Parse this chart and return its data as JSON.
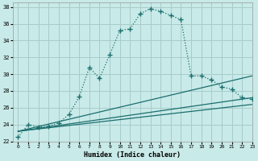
{
  "xlabel": "Humidex (Indice chaleur)",
  "bg_color": "#c8eae8",
  "grid_color": "#a8ccca",
  "line_color": "#1a6e6e",
  "xlim": [
    -0.5,
    23
  ],
  "ylim": [
    22,
    38.5
  ],
  "yticks": [
    22,
    24,
    26,
    28,
    30,
    32,
    34,
    36,
    38
  ],
  "xticks": [
    0,
    1,
    2,
    3,
    4,
    5,
    6,
    7,
    8,
    9,
    10,
    11,
    12,
    13,
    14,
    15,
    16,
    17,
    18,
    19,
    20,
    21,
    22,
    23
  ],
  "curve1_x": [
    0,
    1,
    2,
    3,
    4,
    5,
    6,
    7,
    8,
    9,
    10,
    11,
    12,
    13,
    14,
    15,
    16,
    17,
    18,
    19,
    20,
    21,
    22,
    23
  ],
  "curve1_y": [
    22.5,
    24.0,
    23.7,
    23.8,
    24.2,
    25.2,
    27.3,
    30.8,
    29.5,
    32.3,
    35.2,
    35.4,
    37.2,
    37.8,
    37.5,
    37.0,
    36.5,
    29.8,
    29.8,
    29.3,
    28.5,
    28.2,
    27.2,
    27.0
  ],
  "line2_x": [
    0,
    23
  ],
  "line2_y": [
    23.2,
    29.8
  ],
  "line3_x": [
    0,
    23
  ],
  "line3_y": [
    23.2,
    27.2
  ],
  "line4_x": [
    0,
    23
  ],
  "line4_y": [
    23.2,
    26.4
  ]
}
